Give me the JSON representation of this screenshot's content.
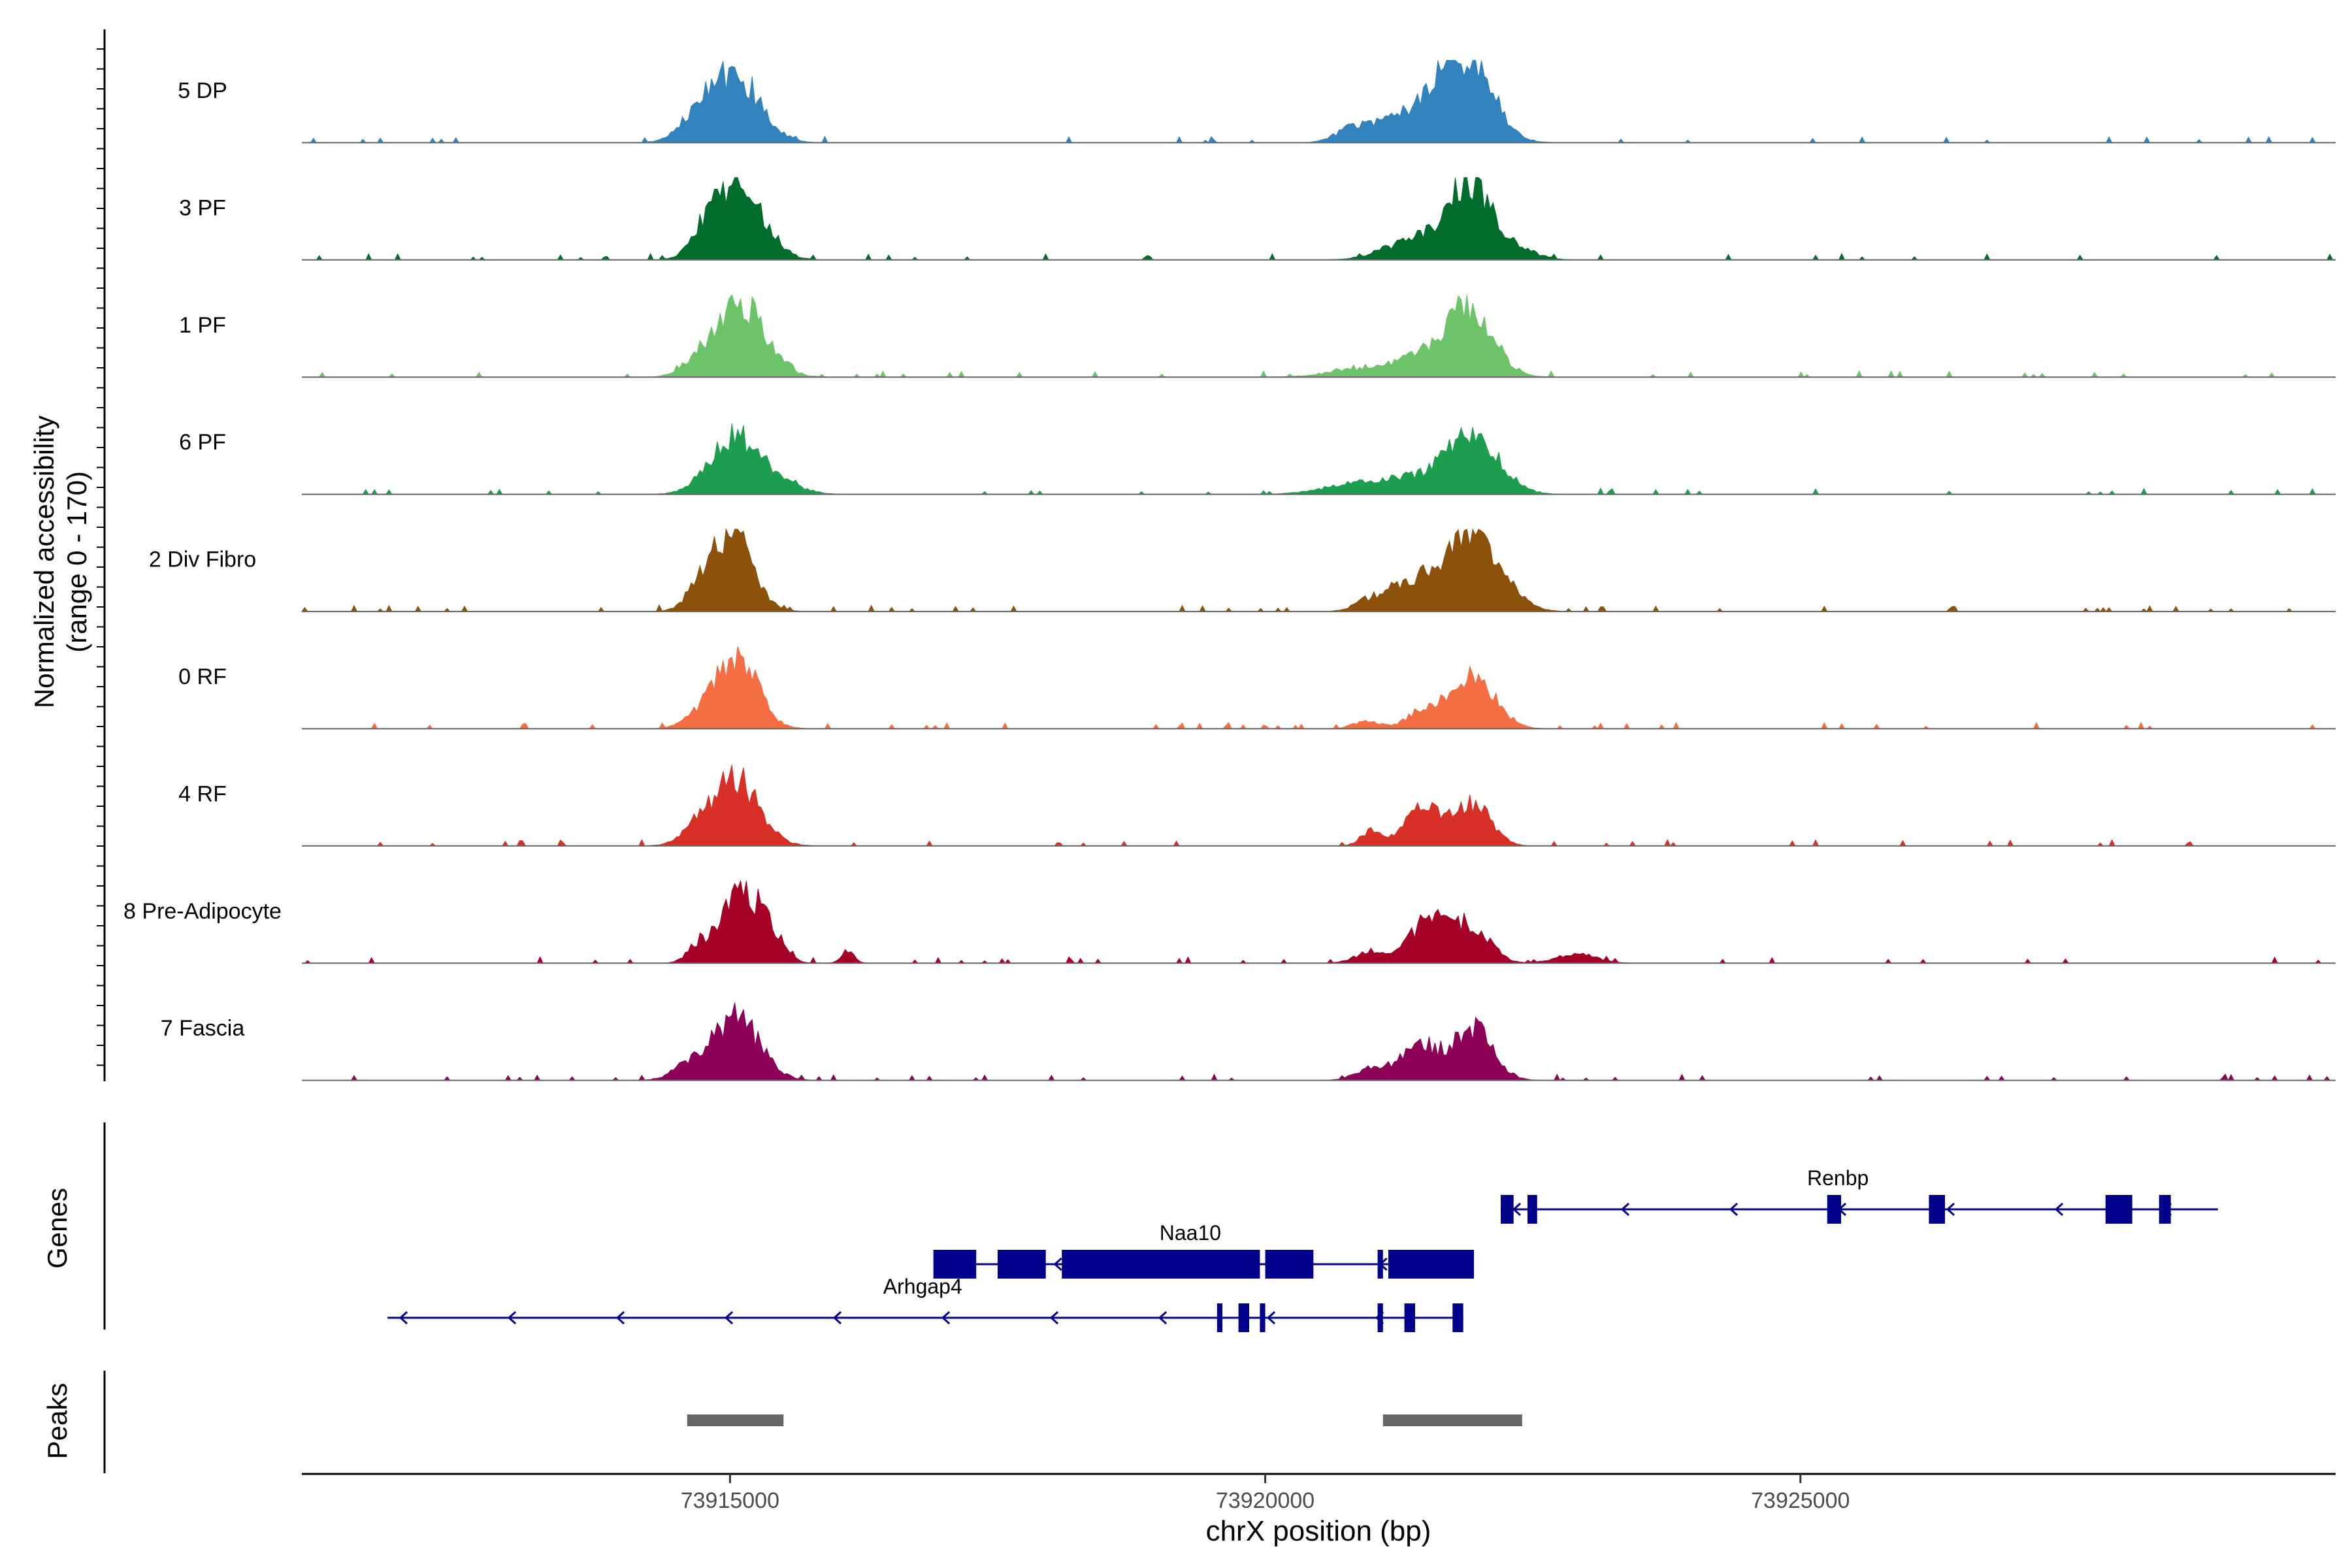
{
  "colors": {
    "5 DP": "#3182bd",
    "3 PF": "#006d2c",
    "1 PF": "#6cc36a",
    "6 PF": "#1d9e4f",
    "2 Div Fibro": "#8c510a",
    "0 RF": "#f46d43",
    "4 RF": "#d73027",
    "8 Pre-Adipocyte": "#a50026",
    "7 Fascia": "#8c0058",
    "gene": "#00008b",
    "peak": "#666666"
  },
  "chart_data": {
    "type": "area",
    "title": "",
    "ylabel_line1": "Normalized accessibility",
    "ylabel_line2": "(range 0 - 170)",
    "xlabel": "chrX position (bp)",
    "xlim": [
      73911000,
      73930000
    ],
    "xticks": [
      73915000,
      73920000,
      73925000
    ],
    "xtick_labels": [
      "73915000",
      "73920000",
      "73925000"
    ],
    "ylim": [
      0,
      170
    ],
    "tracks": [
      {
        "name": "5 DP",
        "peaks": [
          [
            73915050,
            0.85,
            230
          ],
          [
            73914700,
            0.25,
            180
          ],
          [
            73921900,
            1.0,
            230
          ],
          [
            73921300,
            0.35,
            260
          ],
          [
            73920800,
            0.15,
            150
          ],
          [
            73921600,
            0.3,
            150
          ]
        ]
      },
      {
        "name": "3 PF",
        "peaks": [
          [
            73915100,
            0.9,
            220
          ],
          [
            73914800,
            0.3,
            150
          ],
          [
            73921900,
            0.95,
            200
          ],
          [
            73921400,
            0.25,
            280
          ],
          [
            73922300,
            0.15,
            200
          ]
        ]
      },
      {
        "name": "1 PF",
        "peaks": [
          [
            73915100,
            0.95,
            230
          ],
          [
            73914700,
            0.15,
            150
          ],
          [
            73921900,
            0.92,
            220
          ],
          [
            73921400,
            0.2,
            220
          ],
          [
            73920900,
            0.1,
            300
          ]
        ]
      },
      {
        "name": "6 PF",
        "peaks": [
          [
            73915050,
            0.75,
            230
          ],
          [
            73915500,
            0.1,
            200
          ],
          [
            73921950,
            0.7,
            240
          ],
          [
            73921400,
            0.2,
            350
          ],
          [
            73920800,
            0.1,
            300
          ]
        ]
      },
      {
        "name": "2 Div Fibro",
        "peaks": [
          [
            73915000,
            1.0,
            200
          ],
          [
            73914700,
            0.15,
            120
          ],
          [
            73921950,
            1.0,
            250
          ],
          [
            73921400,
            0.35,
            200
          ],
          [
            73921000,
            0.15,
            150
          ]
        ]
      },
      {
        "name": "0 RF",
        "peaks": [
          [
            73915050,
            0.92,
            200
          ],
          [
            73914700,
            0.1,
            150
          ],
          [
            73921950,
            0.65,
            200
          ],
          [
            73921500,
            0.25,
            160
          ],
          [
            73920950,
            0.1,
            120
          ]
        ]
      },
      {
        "name": "4 RF",
        "peaks": [
          [
            73915050,
            0.85,
            220
          ],
          [
            73914700,
            0.15,
            160
          ],
          [
            73921950,
            0.55,
            160
          ],
          [
            73921450,
            0.45,
            150
          ],
          [
            73921000,
            0.2,
            100
          ],
          [
            73921700,
            0.2,
            100
          ]
        ]
      },
      {
        "name": "8 Pre-Adipocyte",
        "peaks": [
          [
            73915100,
            0.95,
            180
          ],
          [
            73914700,
            0.2,
            100
          ],
          [
            73915400,
            0.25,
            120
          ],
          [
            73921550,
            0.6,
            180
          ],
          [
            73921950,
            0.45,
            160
          ],
          [
            73921000,
            0.15,
            150
          ],
          [
            73916100,
            0.15,
            60
          ],
          [
            73922900,
            0.12,
            180
          ]
        ]
      },
      {
        "name": "7 Fascia",
        "peaks": [
          [
            73915050,
            0.8,
            220
          ],
          [
            73914600,
            0.15,
            150
          ],
          [
            73921950,
            0.65,
            180
          ],
          [
            73921450,
            0.45,
            180
          ],
          [
            73921000,
            0.15,
            150
          ]
        ]
      }
    ],
    "genes": [
      {
        "name": "Renbp",
        "row": 0,
        "start": 73922200,
        "end": 73928900,
        "strand": "-",
        "exons": [
          [
            73922200,
            73922320
          ],
          [
            73922450,
            73922540
          ],
          [
            73925250,
            73925380
          ],
          [
            73926200,
            73926350
          ],
          [
            73927850,
            73928100
          ],
          [
            73928350,
            73928460
          ]
        ],
        "label_x": 73925350
      },
      {
        "name": "Naa10",
        "row": 1,
        "start": 73916900,
        "end": 73921950,
        "strand": "-",
        "exons": [
          [
            73916900,
            73917300
          ],
          [
            73917500,
            73917950
          ],
          [
            73918100,
            73919950
          ],
          [
            73920000,
            73920450
          ],
          [
            73921050,
            73921100
          ],
          [
            73921150,
            73921950
          ]
        ],
        "label_x": 73919300
      },
      {
        "name": "Arhgap4",
        "row": 2,
        "start": 73911800,
        "end": 73921850,
        "strand": "-",
        "exons": [
          [
            73919550,
            73919600
          ],
          [
            73919750,
            73919850
          ],
          [
            73919950,
            73920000
          ],
          [
            73921050,
            73921100
          ],
          [
            73921300,
            73921400
          ],
          [
            73921750,
            73921850
          ]
        ],
        "label_x": 73916800
      }
    ],
    "peaks": [
      [
        73914600,
        73915500
      ],
      [
        73921100,
        73922400
      ]
    ],
    "panel_labels": [
      "Genes",
      "Peaks"
    ]
  }
}
